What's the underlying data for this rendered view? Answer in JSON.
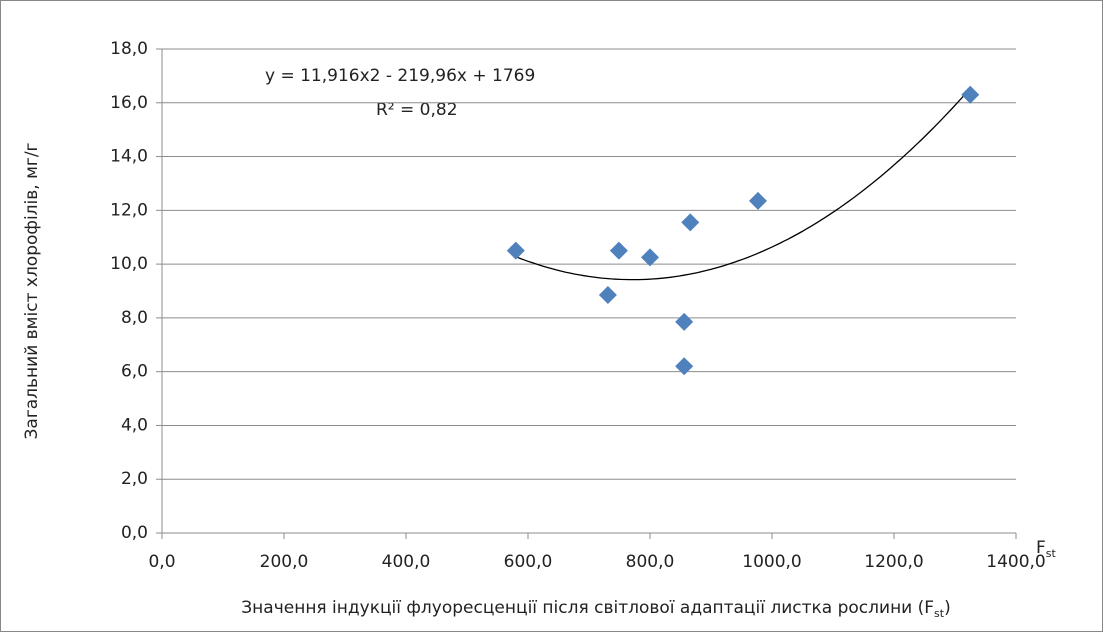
{
  "chart_data": {
    "type": "scatter",
    "equation": "y = 11,916x2 - 219,96x + 1769",
    "r_squared": "R² = 0,82",
    "xlabel": [
      "Значення індукції флуоресценції після світлової адаптації листка рослини (F",
      "st",
      ")"
    ],
    "x_axis_symbol": [
      "F",
      "st"
    ],
    "ylabel": "Загальний вміст хлорофілів, мг/г",
    "x": [
      580,
      731,
      749,
      800,
      856,
      856,
      866,
      977,
      1325
    ],
    "series": [
      {
        "color": "#4f81bd",
        "values": [
          10.5,
          8.85,
          10.5,
          10.25,
          7.85,
          6.2,
          11.55,
          12.35,
          16.3
        ]
      }
    ],
    "trendline": "polynomial",
    "xlim": [
      0,
      1400
    ],
    "ylim": [
      0,
      18
    ],
    "xticks": [
      {
        "value": 0,
        "label": "0,0"
      },
      {
        "value": 200,
        "label": "200,0"
      },
      {
        "value": 400,
        "label": "400,0"
      },
      {
        "value": 600,
        "label": "600,0"
      },
      {
        "value": 800,
        "label": "800,0"
      },
      {
        "value": 1000,
        "label": "1000,0"
      },
      {
        "value": 1200,
        "label": "1200,0"
      },
      {
        "value": 1400,
        "label": "1400,0"
      }
    ],
    "yticks": [
      {
        "value": 0,
        "label": "0,0"
      },
      {
        "value": 2,
        "label": "2,0"
      },
      {
        "value": 4,
        "label": "4,0"
      },
      {
        "value": 6,
        "label": "6,0"
      },
      {
        "value": 8,
        "label": "8,0"
      },
      {
        "value": 10,
        "label": "10,0"
      },
      {
        "value": 12,
        "label": "12,0"
      },
      {
        "value": 14,
        "label": "14,0"
      },
      {
        "value": 16,
        "label": "16,0"
      },
      {
        "value": 18,
        "label": "18,0"
      }
    ],
    "grid": true
  }
}
